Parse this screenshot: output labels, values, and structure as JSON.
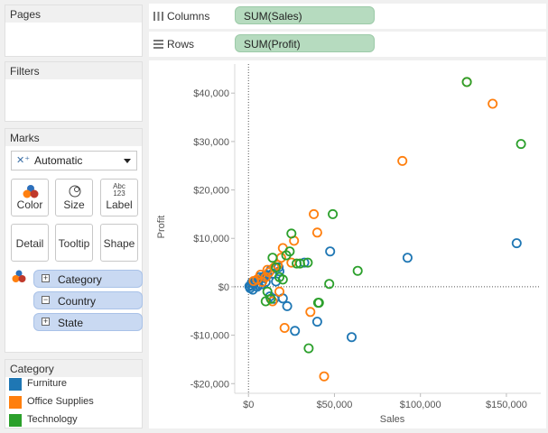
{
  "pages": {
    "title": "Pages"
  },
  "filters": {
    "title": "Filters"
  },
  "marks": {
    "title": "Marks",
    "mark_type": "Automatic",
    "buttons": {
      "color": "Color",
      "size": "Size",
      "label": "Label",
      "detail": "Detail",
      "tooltip": "Tooltip",
      "shape": "Shape"
    },
    "label_icon_text": "Abc\n123",
    "fields": [
      "Category",
      "Country",
      "State"
    ]
  },
  "columns_shelf": {
    "label": "Columns",
    "pill": "SUM(Sales)"
  },
  "rows_shelf": {
    "label": "Rows",
    "pill": "SUM(Profit)"
  },
  "legend": {
    "title": "Category",
    "items": [
      {
        "label": "Furniture",
        "color": "#1f77b4"
      },
      {
        "label": "Office Supplies",
        "color": "#ff7f0e"
      },
      {
        "label": "Technology",
        "color": "#2ca02c"
      }
    ]
  },
  "chart_data": {
    "type": "scatter",
    "xlabel": "Sales",
    "ylabel": "Profit",
    "xlim": [
      -8000,
      170000
    ],
    "ylim": [
      -22000,
      46000
    ],
    "x_ticks": [
      {
        "value": 0,
        "label": "$0"
      },
      {
        "value": 50000,
        "label": "$50,000"
      },
      {
        "value": 100000,
        "label": "$100,000"
      },
      {
        "value": 150000,
        "label": "$150,000"
      }
    ],
    "y_ticks": [
      {
        "value": 40000,
        "label": "$40,000"
      },
      {
        "value": 30000,
        "label": "$30,000"
      },
      {
        "value": 20000,
        "label": "$20,000"
      },
      {
        "value": 10000,
        "label": "$10,000"
      },
      {
        "value": 0,
        "label": "$0"
      },
      {
        "value": -10000,
        "label": "-$10,000"
      },
      {
        "value": -20000,
        "label": "-$20,000"
      }
    ],
    "series": [
      {
        "name": "Furniture",
        "color": "#1f77b4",
        "x": [
          156000,
          92500,
          47500,
          40000,
          60000,
          27000,
          22500,
          32500,
          20000,
          5000,
          7500,
          10000,
          12500,
          15000,
          17500,
          1500,
          3000,
          2000,
          4000,
          6000,
          8000,
          9000,
          11000,
          14000,
          1000,
          500,
          2500,
          3500,
          5500,
          6500,
          18000,
          16000,
          13000
        ],
        "y": [
          9000,
          6000,
          7300,
          -7200,
          -10400,
          -9100,
          -4000,
          5000,
          -2400,
          0,
          500,
          1000,
          -2000,
          -2500,
          4000,
          300,
          600,
          900,
          1200,
          1500,
          1800,
          2100,
          2400,
          2700,
          -300,
          100,
          -600,
          1000,
          400,
          2000,
          3200,
          1100,
          3500
        ]
      },
      {
        "name": "Office Supplies",
        "color": "#ff7f0e",
        "x": [
          142000,
          127000,
          89500,
          40000,
          38000,
          26500,
          20000,
          25000,
          19000,
          17000,
          15000,
          12000,
          10000,
          8000,
          44000,
          36000,
          21000,
          18000,
          7000,
          5000,
          3000,
          14000,
          11000
        ],
        "y": [
          37800,
          42300,
          26000,
          11200,
          15000,
          9500,
          8000,
          5000,
          6000,
          4500,
          4000,
          3000,
          2000,
          1000,
          -18500,
          -5200,
          -8500,
          -1000,
          2500,
          1500,
          1200,
          -3000,
          3500
        ]
      },
      {
        "name": "Technology",
        "color": "#2ca02c",
        "x": [
          158500,
          127000,
          49000,
          34500,
          40500,
          63500,
          28000,
          25000,
          24000,
          35000,
          41000,
          47000,
          30000,
          22000,
          18000,
          16000,
          13000,
          10000,
          14000,
          20000,
          11000
        ],
        "y": [
          29500,
          42300,
          15000,
          5000,
          -3300,
          3300,
          4800,
          11000,
          7300,
          -12700,
          -3300,
          600,
          4800,
          6500,
          2000,
          4000,
          -2500,
          -3000,
          6000,
          1500,
          -1000
        ]
      }
    ]
  }
}
